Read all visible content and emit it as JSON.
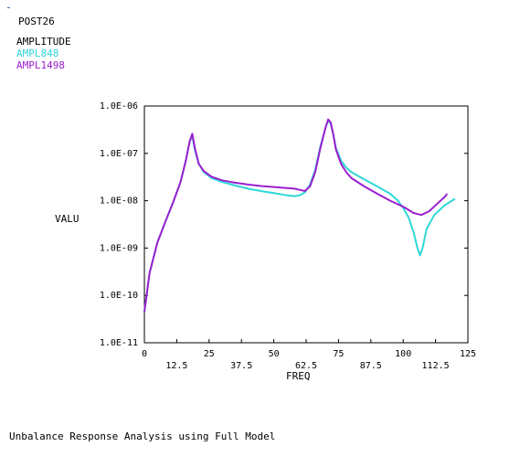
{
  "header": {
    "program": "POST26",
    "title": "AMPLITUDE",
    "series_labels": [
      "AMPL848",
      "AMPL1498"
    ]
  },
  "caption": "Unbalance Response Analysis using Full Model",
  "colors": {
    "ampl848": "#2fd6d6",
    "ampl1498": "#9a1fd0",
    "axis": "#000000"
  },
  "chart_data": {
    "type": "line",
    "xlabel": "FREQ",
    "ylabel": "VALU",
    "xlim": [
      0,
      125
    ],
    "ylim": [
      1e-11,
      1e-06
    ],
    "yscale": "log",
    "x_ticks_top_row": [
      "0",
      "25",
      "50",
      "75",
      "100",
      "125"
    ],
    "x_ticks_bottom_row": [
      "12.5",
      "37.5",
      "62.5",
      "87.5",
      "112.5"
    ],
    "y_ticks": [
      "1.0E-11",
      "1.0E-10",
      "1.0E-09",
      "1.0E-08",
      "1.0E-07",
      "1.0E-06"
    ],
    "grid": false,
    "series": [
      {
        "name": "AMPL848",
        "x": [
          0,
          2,
          5,
          8,
          11,
          14,
          16,
          17.5,
          18.5,
          19.5,
          21,
          23,
          26,
          30,
          35,
          40,
          45,
          50,
          55,
          58,
          60,
          62,
          64,
          66,
          68,
          70,
          71,
          72,
          73,
          74,
          76,
          78,
          80,
          85,
          90,
          95,
          98,
          100,
          102,
          104,
          105.5,
          106.5,
          107.5,
          109,
          112,
          116,
          120
        ],
        "y": [
          4.5e-11,
          3e-10,
          1.3e-09,
          3.5e-09,
          9e-09,
          2.5e-08,
          7e-08,
          1.8e-07,
          2.3e-07,
          1.2e-07,
          6e-08,
          4e-08,
          3e-08,
          2.5e-08,
          2.1e-08,
          1.8e-08,
          1.6e-08,
          1.45e-08,
          1.3e-08,
          1.25e-08,
          1.3e-08,
          1.5e-08,
          2.2e-08,
          4.5e-08,
          1.4e-07,
          3.5e-07,
          5e-07,
          4.2e-07,
          2.5e-07,
          1.3e-07,
          7e-08,
          5e-08,
          4e-08,
          2.8e-08,
          2e-08,
          1.4e-08,
          1e-08,
          7e-09,
          4.5e-09,
          2.2e-09,
          1e-09,
          7e-10,
          1e-09,
          2.5e-09,
          5e-09,
          8e-09,
          1.1e-08
        ]
      },
      {
        "name": "AMPL1498",
        "x": [
          0,
          2,
          5,
          8,
          11,
          14,
          16,
          17.5,
          18.5,
          19.5,
          21,
          23,
          26,
          30,
          35,
          40,
          45,
          50,
          55,
          58,
          60,
          62,
          64,
          66,
          68,
          70,
          71,
          72,
          73,
          74,
          76,
          78,
          80,
          85,
          90,
          95,
          100,
          104,
          107,
          110,
          113,
          116,
          117
        ],
        "y": [
          4.5e-11,
          3e-10,
          1.3e-09,
          3.5e-09,
          9e-09,
          2.5e-08,
          7e-08,
          1.8e-07,
          2.6e-07,
          1.3e-07,
          6e-08,
          4.2e-08,
          3.2e-08,
          2.7e-08,
          2.4e-08,
          2.2e-08,
          2.05e-08,
          1.95e-08,
          1.85e-08,
          1.8e-08,
          1.7e-08,
          1.6e-08,
          2e-08,
          4e-08,
          1.3e-07,
          3.5e-07,
          5.2e-07,
          4.5e-07,
          2.5e-07,
          1.2e-07,
          6e-08,
          4e-08,
          3e-08,
          2e-08,
          1.4e-08,
          1e-08,
          7.5e-09,
          5.5e-09,
          5e-09,
          6e-09,
          8.5e-09,
          1.2e-08,
          1.4e-08
        ]
      }
    ]
  }
}
